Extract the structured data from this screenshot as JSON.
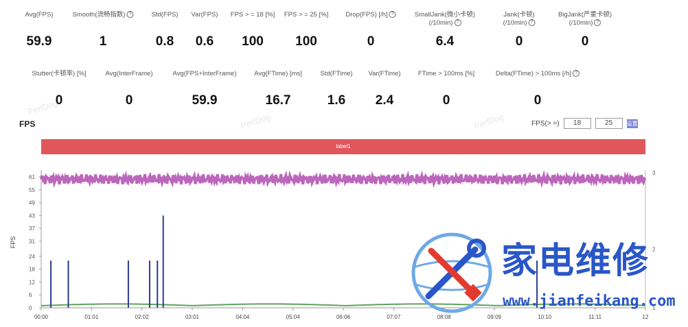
{
  "stats_row1": [
    {
      "label": "Avg(FPS)",
      "value": "59.9"
    },
    {
      "label": "Smooth(流畅指数)",
      "value": "1",
      "info": true
    },
    {
      "label": "Std(FPS)",
      "value": "0.8"
    },
    {
      "label": "Var(FPS)",
      "value": "0.6"
    },
    {
      "label": "FPS > = 18 [%]",
      "value": "100"
    },
    {
      "label": "FPS > = 25 [%]",
      "value": "100"
    },
    {
      "label": "Drop(FPS) [/h]",
      "value": "0",
      "info": true
    },
    {
      "label": "SmallJank(微小卡顿)",
      "label2": "(/10min)",
      "value": "6.4",
      "info": true
    },
    {
      "label": "Jank(卡顿)",
      "label2": "(/10min)",
      "value": "0",
      "info": true
    },
    {
      "label": "BigJank(严重卡顿)",
      "label2": "(/10min)",
      "value": "0",
      "info": true
    }
  ],
  "stats_row2": [
    {
      "label": "Stutter(卡顿率) [%]",
      "value": "0"
    },
    {
      "label": "Avg(InterFrame)",
      "value": "0"
    },
    {
      "label": "Avg(FPS+InterFrame)",
      "value": "59.9"
    },
    {
      "label": "Avg(FTime) [ms]",
      "value": "16.7"
    },
    {
      "label": "Std(FTime)",
      "value": "1.6"
    },
    {
      "label": "Var(FTime)",
      "value": "2.4"
    },
    {
      "label": "FTime > 100ms [%]",
      "value": "0"
    },
    {
      "label": "Delta(FTime) > 100ms [/h]",
      "value": "0",
      "info": true
    }
  ],
  "watermark_text": "PerfDog",
  "fps_section": {
    "title": "FPS",
    "threshold_label": "FPS(> =)",
    "threshold1": "18",
    "threshold2": "25",
    "button_label": "设置"
  },
  "label_bar": "label1",
  "chart_data": {
    "type": "line",
    "ylabel": "FPS",
    "y_ticks": [
      "0",
      "6",
      "12",
      "18",
      "24",
      "31",
      "37",
      "43",
      "49",
      "55",
      "61"
    ],
    "y2_ticks": [
      "1",
      "2",
      "3"
    ],
    "x_ticks": [
      "00:00",
      "01:01",
      "02:02",
      "03:01",
      "04:04",
      "05:04",
      "06:06",
      "07:07",
      "08:08",
      "09:09",
      "10:10",
      "11:11",
      "12"
    ],
    "series": [
      {
        "color": "#b04bb0",
        "baseline": 59.9
      },
      {
        "color": "#5da35a",
        "baseline": 1
      },
      {
        "color": "#2c3b8f",
        "spikes": [
          [
            0.5,
            22
          ],
          [
            1.4,
            22
          ],
          [
            4.5,
            22
          ],
          [
            5.6,
            22
          ],
          [
            6.0,
            22
          ],
          [
            6.3,
            43
          ],
          [
            25.6,
            22
          ]
        ]
      }
    ]
  },
  "brand": {
    "title": "家电维修",
    "url": "www.jianfeikang.com",
    "primary": "#2a57c7",
    "accent": "#e23a2f",
    "circle": "#6ea9e6"
  }
}
